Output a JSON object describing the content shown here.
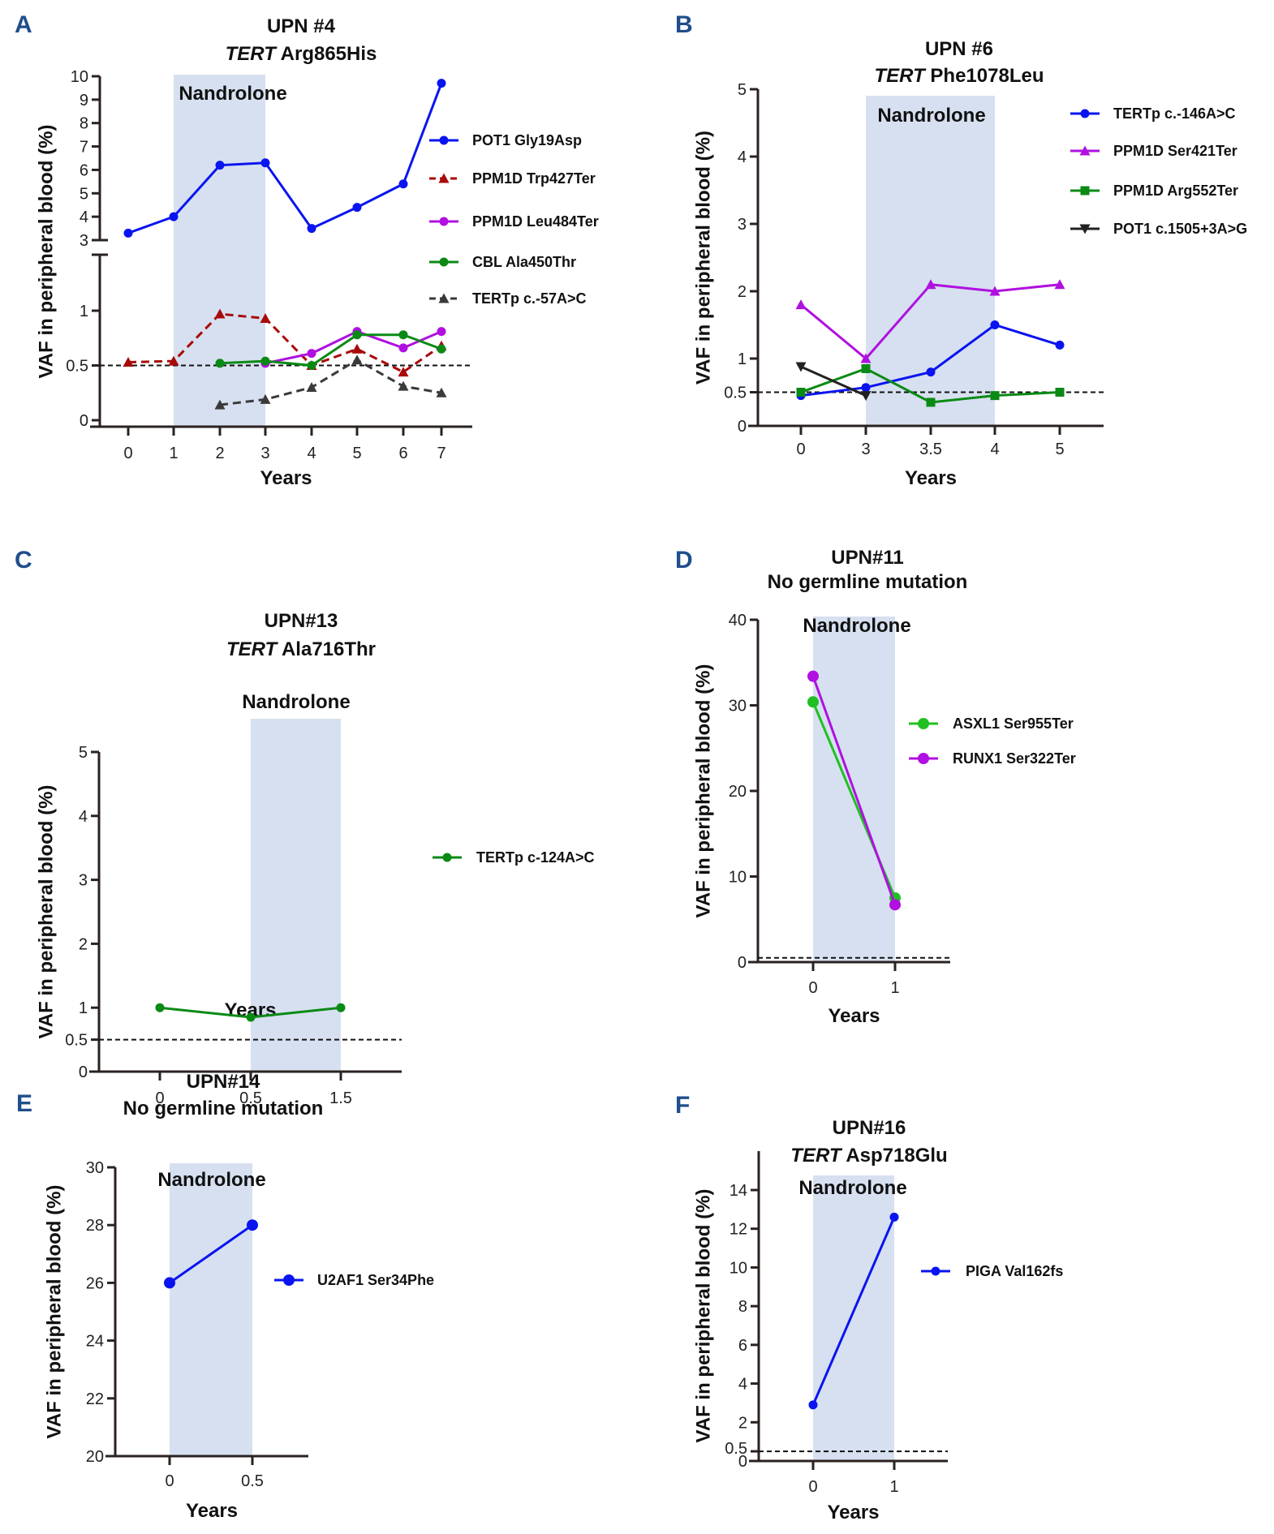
{
  "chart_data": [
    {
      "panel": "A",
      "type": "line",
      "title_line1": "UPN #4",
      "title_gene": "TERT",
      "title_variant": "Arg865His",
      "xlabel": "Years",
      "ylabel": "VAF in peripheral blood (%)",
      "band_label": "Nandrolone",
      "band_range": [
        1,
        3
      ],
      "x_categories": [
        "0",
        "1",
        "2",
        "3",
        "4",
        "5",
        "6",
        "7"
      ],
      "x_values": [
        0,
        1,
        2,
        3,
        4,
        5,
        6,
        7
      ],
      "axis_break": true,
      "ylim_lower": [
        0,
        1.4
      ],
      "ylim_upper": [
        3,
        10
      ],
      "yticks_lower": [
        "0",
        "0.5",
        "1"
      ],
      "yticks_upper": [
        "3",
        "4",
        "5",
        "6",
        "7",
        "8",
        "9",
        "10"
      ],
      "threshold": 0.5,
      "legend_position": "right",
      "series": [
        {
          "name": "POT1 Gly19Asp",
          "color": "#0a14f0",
          "marker": "circle",
          "dashed": false,
          "x": [
            0,
            1,
            2,
            3,
            4,
            5,
            6,
            7
          ],
          "values": [
            3.3,
            4.0,
            6.2,
            6.3,
            3.5,
            4.4,
            5.4,
            9.7
          ]
        },
        {
          "name": "PPM1D Trp427Ter",
          "color": "#a80a0a",
          "marker": "triangle-up",
          "dashed": true,
          "x": [
            0,
            1,
            2,
            3,
            4,
            5,
            6,
            7
          ],
          "values": [
            0.53,
            0.54,
            0.97,
            0.93,
            0.5,
            0.65,
            0.44,
            0.68
          ]
        },
        {
          "name": "PPM1D Leu484Ter",
          "color": "#b010e0",
          "marker": "circle",
          "dashed": false,
          "x": [
            3,
            4,
            5,
            6,
            7
          ],
          "values": [
            0.52,
            0.61,
            0.81,
            0.66,
            0.81
          ]
        },
        {
          "name": "CBL Ala450Thr",
          "color": "#0a8a14",
          "marker": "circle",
          "dashed": false,
          "x": [
            2,
            3,
            4,
            5,
            6,
            7
          ],
          "values": [
            0.52,
            0.54,
            0.5,
            0.78,
            0.78,
            0.65
          ]
        },
        {
          "name": "TERTp c.-57A>C",
          "color": "#3a3a3a",
          "marker": "triangle-up",
          "dashed": true,
          "x": [
            2,
            3,
            4,
            5,
            6,
            7
          ],
          "values": [
            0.14,
            0.19,
            0.3,
            0.55,
            0.31,
            0.25
          ]
        }
      ]
    },
    {
      "panel": "B",
      "type": "line",
      "title_line1": "UPN #6",
      "title_gene": "TERT",
      "title_variant": "Phe1078Leu",
      "xlabel": "Years",
      "ylabel": "VAF in peripheral blood (%)",
      "band_label": "Nandrolone",
      "band_range": [
        "3",
        "4"
      ],
      "x_categories": [
        "0",
        "3",
        "3.5",
        "4",
        "5"
      ],
      "ylim": [
        0,
        5
      ],
      "yticks": [
        "0",
        "0.5",
        "1",
        "2",
        "3",
        "4",
        "5"
      ],
      "threshold": 0.5,
      "legend_position": "right",
      "series": [
        {
          "name": "TERTp c.-146A>C",
          "color": "#0a14f0",
          "marker": "circle",
          "x": [
            "0",
            "3",
            "3.5",
            "4",
            "5"
          ],
          "values": [
            0.45,
            0.57,
            0.8,
            1.5,
            1.2
          ]
        },
        {
          "name": "PPM1D Ser421Ter",
          "color": "#b010e0",
          "marker": "triangle-up",
          "x": [
            "0",
            "3",
            "3.5",
            "4",
            "5"
          ],
          "values": [
            1.8,
            1.0,
            2.1,
            2.0,
            2.1
          ]
        },
        {
          "name": "PPM1D Arg552Ter",
          "color": "#0a8a14",
          "marker": "square",
          "x": [
            "0",
            "3",
            "3.5",
            "4",
            "5"
          ],
          "values": [
            0.5,
            0.85,
            0.35,
            0.45,
            0.5
          ]
        },
        {
          "name": "POT1 c.1505+3A>G",
          "color": "#222222",
          "marker": "triangle-down",
          "x": [
            "0",
            "3"
          ],
          "values": [
            0.88,
            0.45
          ]
        }
      ]
    },
    {
      "panel": "C",
      "type": "line",
      "title_line1": "UPN#13",
      "title_gene": "TERT",
      "title_variant": "Ala716Thr",
      "xlabel": "Years",
      "ylabel": "VAF in peripheral blood (%)",
      "band_label": "Nandrolone",
      "band_range": [
        "0.5",
        "1.5"
      ],
      "x_categories": [
        "0",
        "0.5",
        "1.5"
      ],
      "ylim": [
        0,
        5
      ],
      "yticks": [
        "0",
        "0.5",
        "1",
        "2",
        "3",
        "4",
        "5"
      ],
      "threshold": 0.5,
      "legend_position": "right",
      "series": [
        {
          "name": "TERTp c-124A>C",
          "color": "#0a8a14",
          "marker": "circle",
          "x": [
            "0",
            "0.5",
            "1.5"
          ],
          "values": [
            1.0,
            0.85,
            1.0
          ]
        }
      ]
    },
    {
      "panel": "D",
      "type": "line",
      "title_line1": "UPN#11",
      "title_gene": "",
      "title_variant": "No germline mutation",
      "xlabel": "Years",
      "ylabel": "VAF in peripheral blood (%)",
      "band_label": "Nandrolone",
      "band_range": [
        0,
        1
      ],
      "x_categories": [
        "0",
        "1"
      ],
      "ylim": [
        0,
        40
      ],
      "yticks": [
        "0",
        "10",
        "20",
        "30",
        "40"
      ],
      "threshold": 0.5,
      "legend_position": "right",
      "series": [
        {
          "name": "ASXL1 Ser955Ter",
          "color": "#20c020",
          "marker": "circle",
          "x": [
            "0",
            "1"
          ],
          "values": [
            30.4,
            7.5
          ]
        },
        {
          "name": "RUNX1 Ser322Ter",
          "color": "#b010e0",
          "marker": "circle",
          "x": [
            "0",
            "1"
          ],
          "values": [
            33.4,
            6.7
          ]
        }
      ]
    },
    {
      "panel": "E",
      "type": "line",
      "title_line1": "UPN#14",
      "title_gene": "",
      "title_variant": "No germline mutation",
      "xlabel": "Years",
      "ylabel": "VAF in peripheral blood (%)",
      "band_label": "Nandrolone",
      "band_range": [
        0,
        0.5
      ],
      "x_categories": [
        "0",
        "0.5"
      ],
      "ylim": [
        20,
        30
      ],
      "yticks": [
        "20",
        "22",
        "24",
        "26",
        "28",
        "30"
      ],
      "threshold": null,
      "legend_position": "right",
      "series": [
        {
          "name": "U2AF1 Ser34Phe",
          "color": "#0a14f0",
          "marker": "circle",
          "x": [
            "0",
            "0.5"
          ],
          "values": [
            26.0,
            28.0
          ]
        }
      ]
    },
    {
      "panel": "F",
      "type": "line",
      "title_line1": "UPN#16",
      "title_gene": "TERT",
      "title_variant": "Asp718Glu",
      "xlabel": "Years",
      "ylabel": "VAF in peripheral blood (%)",
      "band_label": "Nandrolone",
      "band_range": [
        0,
        1
      ],
      "x_categories": [
        "0",
        "1"
      ],
      "ylim": [
        0,
        15
      ],
      "yticks": [
        "0",
        "0.5",
        "2",
        "4",
        "6",
        "8",
        "10",
        "12",
        "14"
      ],
      "threshold": 0.5,
      "legend_position": "right",
      "series": [
        {
          "name": "PIGA Val162fs",
          "color": "#0a14f0",
          "marker": "circle",
          "x": [
            "0",
            "1"
          ],
          "values": [
            2.9,
            12.6
          ]
        }
      ]
    }
  ]
}
